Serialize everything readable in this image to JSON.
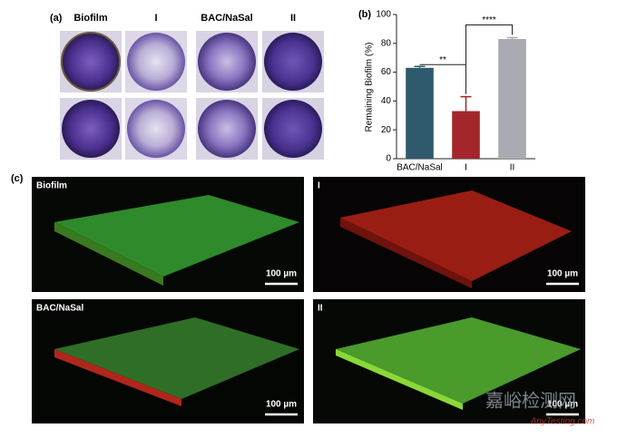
{
  "panel_a": {
    "label": "(a)",
    "columns": [
      "Biofilm",
      "I",
      "BAC/NaSal",
      "II"
    ]
  },
  "chart_data": {
    "type": "bar",
    "panel_label": "(b)",
    "y_label": "Remaining Biofilm (%)",
    "categories": [
      "BAC/NaSal",
      "I",
      "II"
    ],
    "values": [
      63,
      33,
      83
    ],
    "errors": [
      1,
      10,
      1
    ],
    "colors": [
      "#2e5a6c",
      "#a3262a",
      "#a9a9b1"
    ],
    "ylim": [
      0,
      100
    ],
    "yticks": [
      0,
      20,
      40,
      60,
      80,
      100
    ],
    "significance": [
      "**",
      "****"
    ]
  },
  "panel_c": {
    "label": "(c)",
    "images": [
      {
        "title": "Biofilm",
        "scale": "100 µm"
      },
      {
        "title": "I",
        "scale": "100 µm"
      },
      {
        "title": "BAC/NaSal",
        "scale": "100 µm"
      },
      {
        "title": "II",
        "scale": "100 µm"
      }
    ]
  },
  "watermark": {
    "text": "嘉峪检测网",
    "url": "AnyTesting.com"
  }
}
